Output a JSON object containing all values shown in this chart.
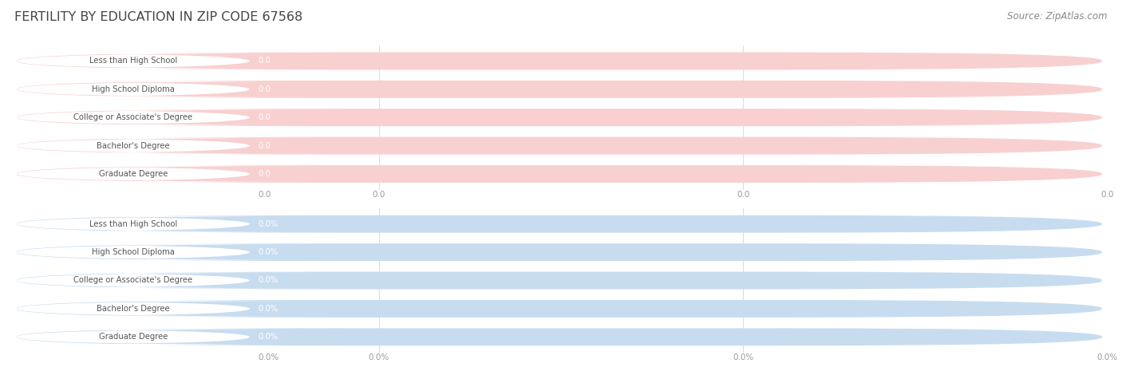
{
  "title": "FERTILITY BY EDUCATION IN ZIP CODE 67568",
  "source": "Source: ZipAtlas.com",
  "categories": [
    "Less than High School",
    "High School Diploma",
    "College or Associate's Degree",
    "Bachelor's Degree",
    "Graduate Degree"
  ],
  "top_values": [
    0.0,
    0.0,
    0.0,
    0.0,
    0.0
  ],
  "bottom_values": [
    0.0,
    0.0,
    0.0,
    0.0,
    0.0
  ],
  "top_bar_color": "#F0A0A0",
  "top_bg_color": "#F8D0D0",
  "bottom_bar_color": "#98BEE0",
  "bottom_bg_color": "#C8DCF0",
  "grid_color": "#DDDDDD",
  "tick_color": "#999999",
  "title_color": "#444444",
  "label_text_color": "#555555",
  "value_text_color": "#FFFFFF",
  "source_color": "#888888",
  "background_color": "#FFFFFF",
  "fig_width": 14.06,
  "fig_height": 4.75
}
